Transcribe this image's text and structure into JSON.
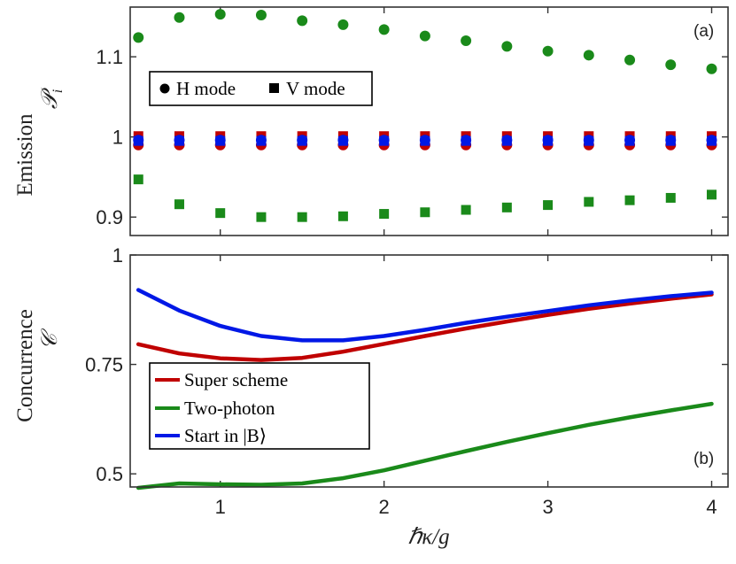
{
  "colors": {
    "red": "#c00000",
    "green": "#1a8a1a",
    "blue": "#0018e6"
  },
  "chart_data": [
    {
      "type": "scatter",
      "panel_label": "(a)",
      "ylabel_line1": "Emission",
      "ylabel_line2": "𝒫",
      "ylabel_sub": "i",
      "xlim": [
        0.45,
        4.1
      ],
      "ylim": [
        0.877,
        1.162
      ],
      "yticks": [
        0.9,
        1,
        1.1
      ],
      "ytick_labels": [
        "0.9",
        "1",
        "1.1"
      ],
      "legend": {
        "position": "upper-left",
        "entries": [
          "H mode",
          "V mode"
        ]
      },
      "x": [
        0.5,
        0.75,
        1.0,
        1.25,
        1.5,
        1.75,
        2.0,
        2.25,
        2.5,
        2.75,
        3.0,
        3.25,
        3.5,
        3.75,
        4.0
      ],
      "series": [
        {
          "name": "Two-photon H mode",
          "marker": "circle",
          "color": "#1a8a1a",
          "values": [
            1.124,
            1.149,
            1.153,
            1.152,
            1.145,
            1.14,
            1.134,
            1.126,
            1.12,
            1.113,
            1.107,
            1.102,
            1.096,
            1.09,
            1.085
          ]
        },
        {
          "name": "Two-photon V mode",
          "marker": "square",
          "color": "#1a8a1a",
          "values": [
            0.947,
            0.916,
            0.905,
            0.9,
            0.9,
            0.901,
            0.904,
            0.906,
            0.909,
            0.912,
            0.915,
            0.919,
            0.921,
            0.924,
            0.928
          ]
        },
        {
          "name": "Super scheme H mode",
          "marker": "circle",
          "color": "#c00000",
          "values": [
            0.99,
            0.99,
            0.99,
            0.99,
            0.99,
            0.99,
            0.99,
            0.99,
            0.99,
            0.99,
            0.99,
            0.99,
            0.99,
            0.99,
            0.99
          ]
        },
        {
          "name": "Super scheme V mode",
          "marker": "square",
          "color": "#c00000",
          "values": [
            1.001,
            1.001,
            1.001,
            1.001,
            1.001,
            1.001,
            1.001,
            1.001,
            1.001,
            1.001,
            1.001,
            1.001,
            1.001,
            1.001,
            1.001
          ]
        },
        {
          "name": "Start in |B⟩ H mode",
          "marker": "circle",
          "color": "#0018e6",
          "values": [
            0.996,
            0.996,
            0.996,
            0.996,
            0.996,
            0.996,
            0.996,
            0.996,
            0.996,
            0.996,
            0.996,
            0.996,
            0.996,
            0.996,
            0.996
          ]
        },
        {
          "name": "Start in |B⟩ V mode",
          "marker": "square",
          "color": "#0018e6",
          "values": [
            0.995,
            0.995,
            0.995,
            0.995,
            0.995,
            0.995,
            0.995,
            0.995,
            0.995,
            0.995,
            0.995,
            0.995,
            0.995,
            0.995,
            0.995
          ]
        }
      ]
    },
    {
      "type": "line",
      "panel_label": "(b)",
      "ylabel_line1": "Concurrence",
      "ylabel_line2": "𝒞",
      "xlabel": "ℏκ/g",
      "xlim": [
        0.45,
        4.1
      ],
      "ylim": [
        0.47,
        1.0
      ],
      "xticks": [
        1,
        2,
        3,
        4
      ],
      "xtick_labels": [
        "1",
        "2",
        "3",
        "4"
      ],
      "yticks": [
        0.5,
        0.75,
        1
      ],
      "ytick_labels": [
        "0.5",
        "0.75",
        "1"
      ],
      "legend": {
        "position": "lower-left",
        "entries": [
          "Super scheme",
          "Two-photon",
          "Start in |B⟩"
        ]
      },
      "x": [
        0.5,
        0.75,
        1.0,
        1.25,
        1.5,
        1.75,
        2.0,
        2.25,
        2.5,
        2.75,
        3.0,
        3.25,
        3.5,
        3.75,
        4.0
      ],
      "series": [
        {
          "name": "Super scheme",
          "color": "#c00000",
          "values": [
            0.796,
            0.775,
            0.764,
            0.76,
            0.765,
            0.779,
            0.797,
            0.815,
            0.832,
            0.848,
            0.863,
            0.877,
            0.889,
            0.9,
            0.91
          ]
        },
        {
          "name": "Two-photon",
          "color": "#1a8a1a",
          "values": [
            0.468,
            0.478,
            0.476,
            0.475,
            0.478,
            0.49,
            0.508,
            0.53,
            0.552,
            0.573,
            0.593,
            0.612,
            0.629,
            0.645,
            0.66
          ]
        },
        {
          "name": "Start in |B⟩",
          "color": "#0018e6",
          "values": [
            0.92,
            0.873,
            0.838,
            0.815,
            0.805,
            0.805,
            0.815,
            0.829,
            0.845,
            0.859,
            0.872,
            0.885,
            0.896,
            0.906,
            0.914
          ]
        }
      ]
    }
  ]
}
